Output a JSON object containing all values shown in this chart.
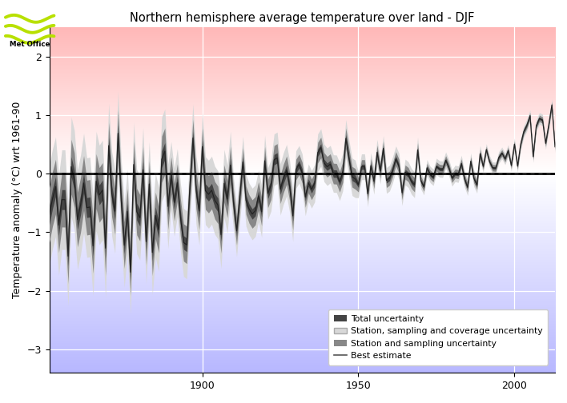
{
  "title": "Northern hemisphere average temperature over land - DJF",
  "ylabel": "Temperature anomaly (°C) wrt 1961-90",
  "xlim": [
    1851,
    2013
  ],
  "ylim": [
    -3.4,
    2.5
  ],
  "yticks": [
    -3,
    -2,
    -1,
    0,
    1,
    2
  ],
  "xticks": [
    1900,
    1950,
    2000
  ],
  "color_total_unc": "#d8d8d8",
  "color_ssc_unc": "#888888",
  "color_ss_unc": "#444444",
  "color_best": "#222222",
  "legend_labels": [
    "Total uncertainty",
    "Station, sampling and coverage uncertainty",
    "Station and sampling uncertainty",
    "Best estimate"
  ],
  "bg_red": [
    1.0,
    0.72,
    0.72
  ],
  "bg_blue": [
    0.72,
    0.72,
    1.0
  ],
  "grid_color": "#ffffff"
}
